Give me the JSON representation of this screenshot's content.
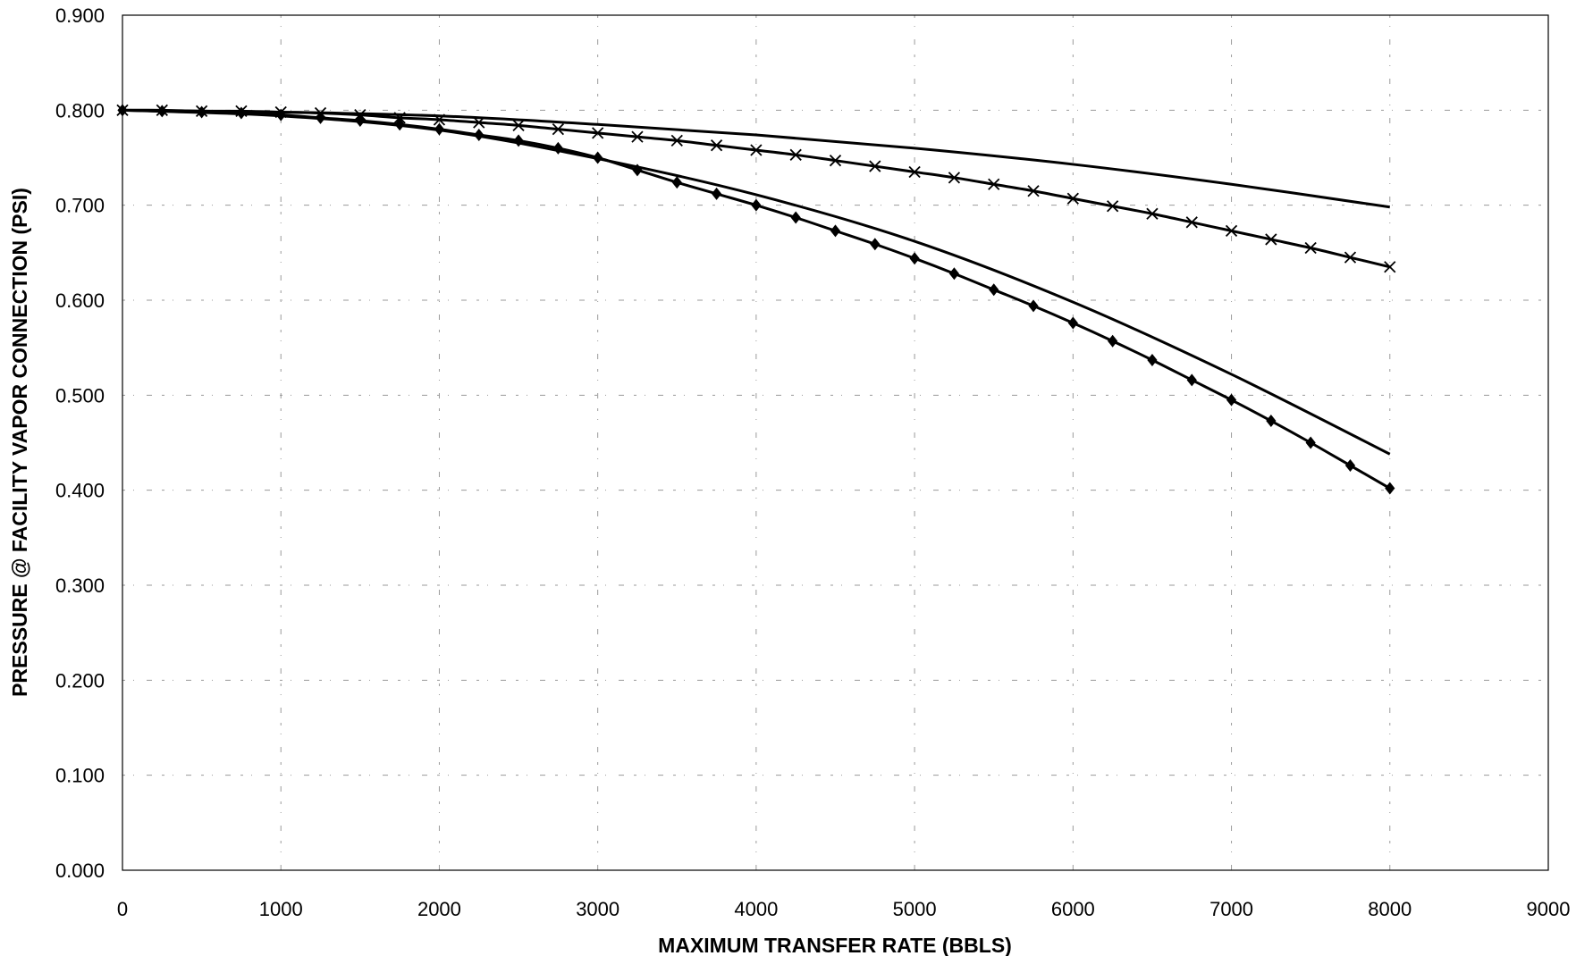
{
  "chart_data": {
    "type": "line",
    "title": "",
    "xlabel": "MAXIMUM TRANSFER RATE (BBLS)",
    "ylabel": "PRESSURE @ FACILITY VAPOR CONNECTION (PSI)",
    "xlim": [
      0,
      9000
    ],
    "ylim": [
      0,
      0.9
    ],
    "x_ticks": [
      "0",
      "1000",
      "2000",
      "3000",
      "4000",
      "5000",
      "6000",
      "7000",
      "8000",
      "9000"
    ],
    "y_ticks": [
      "0.000",
      "0.100",
      "0.200",
      "0.300",
      "0.400",
      "0.500",
      "0.600",
      "0.700",
      "0.800",
      "0.900"
    ],
    "grid": true,
    "legend": "none",
    "series": [
      {
        "marker": "none",
        "x": [
          0,
          1000,
          2000,
          3000,
          4000,
          5000,
          6000,
          7000,
          8000
        ],
        "y": [
          0.8,
          0.798,
          0.794,
          0.785,
          0.774,
          0.76,
          0.743,
          0.722,
          0.698
        ]
      },
      {
        "marker": "x",
        "x": [
          0,
          250,
          500,
          750,
          1000,
          1250,
          1500,
          1750,
          2000,
          2250,
          2500,
          2750,
          3000,
          3250,
          3500,
          3750,
          4000,
          4250,
          4500,
          4750,
          5000,
          5250,
          5500,
          5750,
          6000,
          6250,
          6500,
          6750,
          7000,
          7250,
          7500,
          7750,
          8000
        ],
        "y": [
          0.8,
          0.8,
          0.799,
          0.799,
          0.798,
          0.797,
          0.795,
          0.792,
          0.79,
          0.787,
          0.784,
          0.78,
          0.776,
          0.772,
          0.768,
          0.763,
          0.758,
          0.753,
          0.747,
          0.741,
          0.735,
          0.729,
          0.722,
          0.715,
          0.707,
          0.699,
          0.691,
          0.682,
          0.673,
          0.664,
          0.655,
          0.645,
          0.635
        ]
      },
      {
        "marker": "none",
        "x": [
          0,
          1000,
          2000,
          3000,
          4000,
          5000,
          6000,
          7000,
          8000
        ],
        "y": [
          0.8,
          0.794,
          0.779,
          0.749,
          0.711,
          0.662,
          0.598,
          0.522,
          0.438
        ]
      },
      {
        "marker": "diamond",
        "x": [
          0,
          250,
          500,
          750,
          1000,
          1250,
          1500,
          1750,
          2000,
          2250,
          2500,
          2750,
          3000,
          3250,
          3500,
          3750,
          4000,
          4250,
          4500,
          4750,
          5000,
          5250,
          5500,
          5750,
          6000,
          6250,
          6500,
          6750,
          7000,
          7250,
          7500,
          7750,
          8000
        ],
        "y": [
          0.8,
          0.799,
          0.798,
          0.797,
          0.795,
          0.792,
          0.789,
          0.785,
          0.78,
          0.774,
          0.768,
          0.76,
          0.75,
          0.737,
          0.724,
          0.712,
          0.7,
          0.687,
          0.673,
          0.659,
          0.644,
          0.628,
          0.611,
          0.594,
          0.576,
          0.557,
          0.537,
          0.516,
          0.495,
          0.473,
          0.45,
          0.426,
          0.402
        ]
      }
    ]
  }
}
